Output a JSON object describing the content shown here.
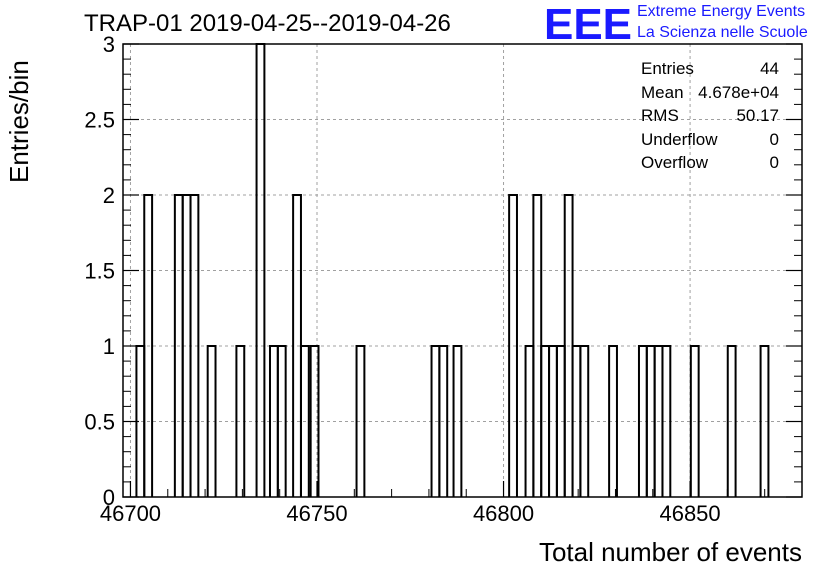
{
  "header": {
    "title": "TRAP-01 2019-04-25--2019-04-26",
    "logo_text": "EEE",
    "brand_line1": "Extreme Energy Events",
    "brand_line2": "La Scienza nelle Scuole"
  },
  "colors": {
    "brand": "#1a1aff",
    "grid": "#a0a0a0",
    "line": "#000000"
  },
  "stats": [
    {
      "key": "Entries",
      "value": "44"
    },
    {
      "key": "Mean",
      "value": "4.678e+04"
    },
    {
      "key": "RMS",
      "value": "50.17"
    },
    {
      "key": "Underflow",
      "value": "0"
    },
    {
      "key": "Overflow",
      "value": "0"
    }
  ],
  "chart_data": {
    "type": "bar",
    "style": "step-histogram",
    "xlabel": "Total number of events",
    "ylabel": "Entries/bin",
    "xlim": [
      46698,
      46880
    ],
    "ylim": [
      0,
      3
    ],
    "grid": true,
    "bin_width": 2.1,
    "x_ticks": [
      46700,
      46750,
      46800,
      46850
    ],
    "x_tick_labels": [
      "46700",
      "46750",
      "46800",
      "46850"
    ],
    "y_ticks": [
      0,
      0.5,
      1,
      1.5,
      2,
      2.5,
      3
    ],
    "y_tick_labels": [
      "0",
      "0.5",
      "1",
      "1.5",
      "2",
      "2.5",
      "3"
    ],
    "bins": [
      {
        "x": 46701.6,
        "value": 1
      },
      {
        "x": 46703.7,
        "value": 2
      },
      {
        "x": 46711.9,
        "value": 2
      },
      {
        "x": 46714.0,
        "value": 2
      },
      {
        "x": 46716.1,
        "value": 2
      },
      {
        "x": 46720.7,
        "value": 1
      },
      {
        "x": 46728.4,
        "value": 1
      },
      {
        "x": 46733.8,
        "value": 3
      },
      {
        "x": 46737.4,
        "value": 1
      },
      {
        "x": 46739.5,
        "value": 1
      },
      {
        "x": 46743.6,
        "value": 2
      },
      {
        "x": 46745.7,
        "value": 1
      },
      {
        "x": 46748.3,
        "value": 1
      },
      {
        "x": 46760.6,
        "value": 1
      },
      {
        "x": 46780.7,
        "value": 1
      },
      {
        "x": 46782.8,
        "value": 1
      },
      {
        "x": 46786.6,
        "value": 1
      },
      {
        "x": 46801.5,
        "value": 2
      },
      {
        "x": 46805.9,
        "value": 1
      },
      {
        "x": 46808.0,
        "value": 2
      },
      {
        "x": 46810.1,
        "value": 1
      },
      {
        "x": 46812.2,
        "value": 1
      },
      {
        "x": 46814.3,
        "value": 1
      },
      {
        "x": 46816.4,
        "value": 2
      },
      {
        "x": 46818.5,
        "value": 1
      },
      {
        "x": 46820.6,
        "value": 1
      },
      {
        "x": 46828.3,
        "value": 1
      },
      {
        "x": 46836.3,
        "value": 1
      },
      {
        "x": 46838.4,
        "value": 1
      },
      {
        "x": 46840.5,
        "value": 1
      },
      {
        "x": 46842.6,
        "value": 1
      },
      {
        "x": 46850.2,
        "value": 1
      },
      {
        "x": 46860.1,
        "value": 1
      },
      {
        "x": 46868.9,
        "value": 1
      }
    ]
  }
}
